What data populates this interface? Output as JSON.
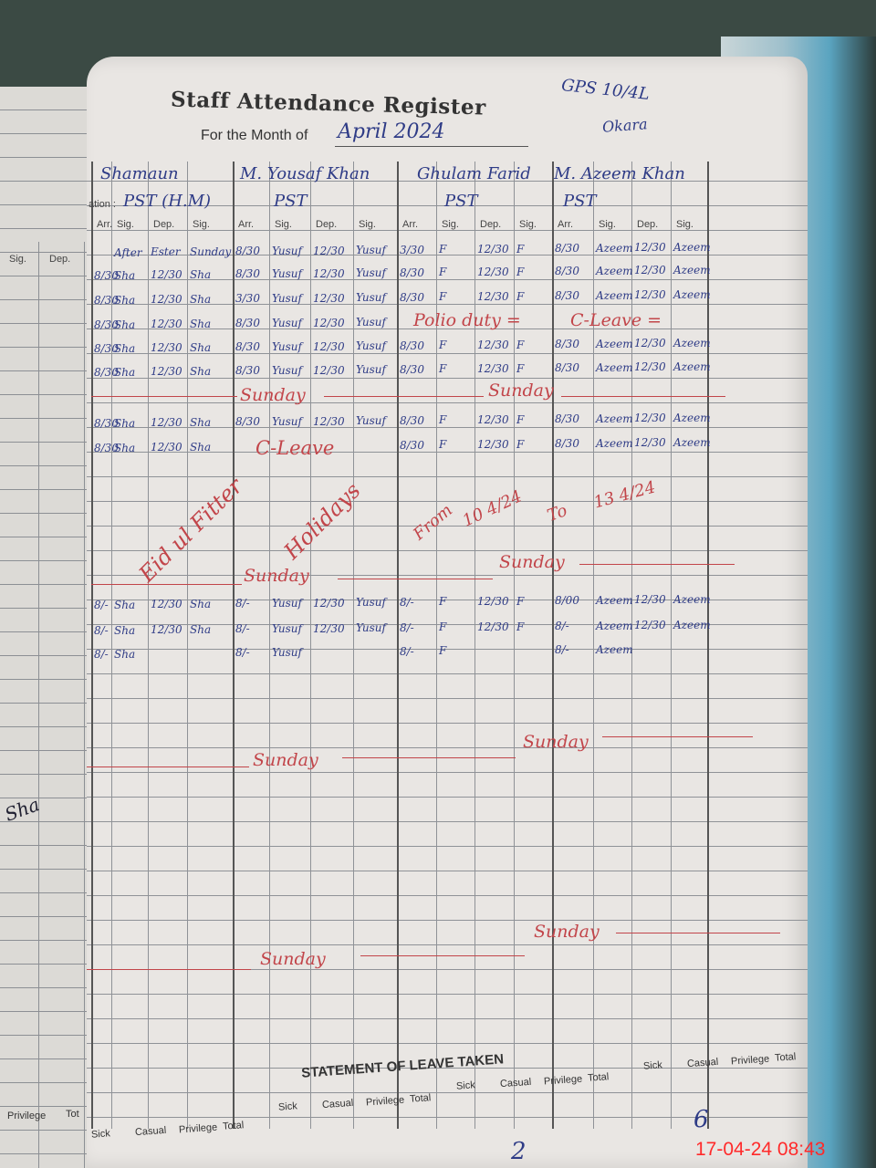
{
  "left_page": {
    "headers": [
      "Sig.",
      "Dep."
    ],
    "scribble": "Sha",
    "bottom_headers": [
      "Privilege",
      "Tot"
    ]
  },
  "register": {
    "title": "Staff Attendance Register",
    "month_label": "For the Month of",
    "month_value": "April 2024",
    "school": "GPS 10/4L",
    "district": "Okara",
    "staff": [
      {
        "name": "Shamaun",
        "designation": "PST (H.M)",
        "designation_label": "ation :"
      },
      {
        "name": "M. Yousaf Khan",
        "designation": "PST"
      },
      {
        "name": "Ghulam Farid",
        "designation": "PST"
      },
      {
        "name": "M. Azeem Khan",
        "designation": "PST"
      }
    ],
    "column_headers": [
      "Arr.",
      "Sig.",
      "Dep.",
      "Sig.",
      "Arr.",
      "Sig.",
      "Dep.",
      "Sig.",
      "Arr.",
      "Sig.",
      "Dep.",
      "Sig.",
      "Arr.",
      "Sig.",
      "Dep.",
      "Sig."
    ],
    "rows": [
      [
        "",
        "After",
        "Ester",
        "Sunday",
        "8/30",
        "Yusuf",
        "12/30",
        "Yusuf",
        "3/30",
        "F",
        "12/30",
        "F",
        "8/30",
        "Azeem",
        "12/30",
        "Azeem"
      ],
      [
        "8/30",
        "Sha",
        "12/30",
        "Sha",
        "8/30",
        "Yusuf",
        "12/30",
        "Yusuf",
        "8/30",
        "F",
        "12/30",
        "F",
        "8/30",
        "Azeem",
        "12/30",
        "Azeem"
      ],
      [
        "8/30",
        "Sha",
        "12/30",
        "Sha",
        "3/30",
        "Yusuf",
        "12/30",
        "Yusuf",
        "8/30",
        "F",
        "12/30",
        "F",
        "8/30",
        "Azeem",
        "12/30",
        "Azeem"
      ],
      [
        "8/30",
        "Sha",
        "12/30",
        "Sha",
        "8/30",
        "Yusuf",
        "12/30",
        "Yusuf",
        "",
        "",
        "",
        "",
        "",
        "",
        "",
        ""
      ],
      [
        "8/30",
        "Sha",
        "12/30",
        "Sha",
        "8/30",
        "Yusuf",
        "12/30",
        "Yusuf",
        "8/30",
        "F",
        "12/30",
        "F",
        "8/30",
        "Azeem",
        "12/30",
        "Azeem"
      ],
      [
        "8/30",
        "Sha",
        "12/30",
        "Sha",
        "8/30",
        "Yusuf",
        "12/30",
        "Yusuf",
        "8/30",
        "F",
        "12/30",
        "F",
        "8/30",
        "Azeem",
        "12/30",
        "Azeem"
      ],
      [
        "8/30",
        "Sha",
        "12/30",
        "Sha",
        "8/30",
        "Yusuf",
        "12/30",
        "Yusuf",
        "8/30",
        "F",
        "12/30",
        "F",
        "8/30",
        "Azeem",
        "12/30",
        "Azeem"
      ],
      [
        "8/30",
        "Sha",
        "12/30",
        "Sha",
        "",
        "",
        "",
        "",
        "8/30",
        "F",
        "12/30",
        "F",
        "8/30",
        "Azeem",
        "12/30",
        "Azeem"
      ],
      [
        "8/-",
        "Sha",
        "12/30",
        "Sha",
        "8/-",
        "Yusuf",
        "12/30",
        "Yusuf",
        "8/-",
        "F",
        "12/30",
        "F",
        "8/00",
        "Azeem",
        "12/30",
        "Azeem"
      ],
      [
        "8/-",
        "Sha",
        "12/30",
        "Sha",
        "8/-",
        "Yusuf",
        "12/30",
        "Yusuf",
        "8/-",
        "F",
        "12/30",
        "F",
        "8/-",
        "Azeem",
        "12/30",
        "Azeem"
      ],
      [
        "8/-",
        "Sha",
        "",
        "",
        "8/-",
        "Yusuf",
        "",
        "",
        "8/-",
        "F",
        "",
        "",
        "8/-",
        "Azeem",
        "",
        ""
      ]
    ],
    "annotations": {
      "polio": "Polio duty =",
      "c_leave_1": "C-Leave =",
      "c_leave_2": "C-Leave",
      "sunday": "Sunday",
      "eid": "Eid ul Fitter",
      "holidays": "Holidays",
      "from": "From",
      "from_date": "10 4/24",
      "to": "To",
      "to_date": "13 4/24"
    }
  },
  "leave_statement": {
    "title": "STATEMENT OF LEAVE TAKEN",
    "headers": [
      "Sick",
      "Casual",
      "Privilege",
      "Total"
    ],
    "values": [
      "2",
      "6"
    ]
  },
  "timestamp": "17-04-24  08:43",
  "colors": {
    "ink_blue": "#2e3b86",
    "ink_red": "#c2454a",
    "stamp_red": "#ff2a2a"
  }
}
